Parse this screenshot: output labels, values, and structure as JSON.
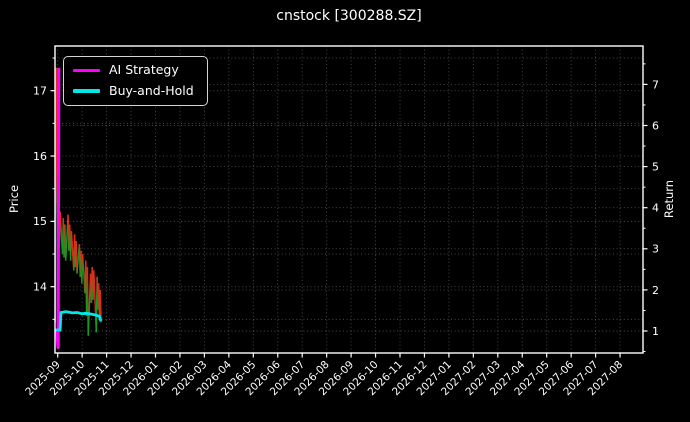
{
  "window": {
    "title": "cnstock [300288.SZ]"
  },
  "colors": {
    "background": "#000000",
    "text": "#ffffff",
    "frame": "#ffffff",
    "grid": "rgba(255,255,255,0.30)",
    "ai_strategy": "#ff00ff",
    "buy_and_hold": "#00e8e8",
    "price_up": "#0b9e20",
    "price_down": "#e12a1c"
  },
  "chart_data": {
    "type": "line",
    "title": "cnstock [300288.SZ]",
    "xlabel": "",
    "left_axis": {
      "label": "Price",
      "ticks": [
        14,
        15,
        16,
        17
      ],
      "minor_ticks": [
        13.5,
        14.5,
        15.5,
        16.5,
        17.5
      ],
      "range": [
        12.98,
        17.68
      ]
    },
    "right_axis": {
      "label": "Return",
      "ticks": [
        1,
        2,
        3,
        4,
        5,
        6,
        7
      ],
      "minor_ticks": [
        0.5,
        1.5,
        2.5,
        3.5,
        4.5,
        5.5,
        6.5,
        7.5
      ],
      "range": [
        0.46,
        7.93
      ]
    },
    "x_tick_labels": [
      "2025-09",
      "2025-10",
      "2025-11",
      "2025-12",
      "2026-01",
      "2026-02",
      "2026-03",
      "2026-04",
      "2026-05",
      "2026-06",
      "2026-07",
      "2026-08",
      "2026-09",
      "2026-10",
      "2026-11",
      "2026-12",
      "2027-01",
      "2027-02",
      "2027-03",
      "2027-04",
      "2027-05",
      "2027-06",
      "2027-07",
      "2027-08"
    ],
    "grid": {
      "on": true,
      "style": "dotted"
    },
    "legend": {
      "position": "upper-left",
      "entries": [
        {
          "label": "AI Strategy",
          "color": "#ff00ff"
        },
        {
          "label": "Buy-and-Hold",
          "color": "#00e8e8"
        }
      ]
    },
    "series": [
      {
        "name": "AI Strategy",
        "axis": "return",
        "color": "#ff00ff",
        "linewidth": 3.2,
        "points_day_value": [
          [
            -1.0,
            1.0
          ],
          [
            0.5,
            0.6
          ],
          [
            1.2,
            7.4
          ]
        ]
      },
      {
        "name": "Buy-and-Hold",
        "axis": "return",
        "color": "#00e8e8",
        "linewidth": 2.8,
        "points_day_value": [
          [
            -3,
            1.02
          ],
          [
            2,
            1.03
          ],
          [
            3,
            1.02
          ],
          [
            4,
            1.45
          ],
          [
            7,
            1.46
          ],
          [
            10,
            1.47
          ],
          [
            14,
            1.46
          ],
          [
            18,
            1.44
          ],
          [
            24,
            1.45
          ],
          [
            30,
            1.42
          ],
          [
            36,
            1.43
          ],
          [
            42,
            1.41
          ],
          [
            47,
            1.39
          ],
          [
            50,
            1.37
          ],
          [
            52,
            1.36
          ],
          [
            53,
            1.28
          ],
          [
            54,
            1.24
          ]
        ]
      },
      {
        "name": "Price",
        "axis": "price",
        "style": "updown-segments",
        "linewidth": 1.5,
        "points_day_value": [
          [
            -3,
            13.45
          ],
          [
            -2,
            17.35
          ],
          [
            -1,
            15.6
          ],
          [
            0,
            15.05
          ],
          [
            1,
            15.3
          ],
          [
            2,
            14.6
          ],
          [
            3,
            15.15
          ],
          [
            6,
            14.5
          ],
          [
            7,
            15.05
          ],
          [
            8,
            14.45
          ],
          [
            9,
            14.95
          ],
          [
            10,
            14.4
          ],
          [
            13,
            15.1
          ],
          [
            14,
            14.55
          ],
          [
            15,
            14.95
          ],
          [
            16,
            14.4
          ],
          [
            17,
            14.85
          ],
          [
            20,
            14.25
          ],
          [
            21,
            14.8
          ],
          [
            22,
            14.3
          ],
          [
            23,
            14.7
          ],
          [
            24,
            14.2
          ],
          [
            27,
            14.65
          ],
          [
            28,
            14.15
          ],
          [
            29,
            14.55
          ],
          [
            30,
            14.05
          ],
          [
            31,
            14.5
          ],
          [
            34,
            13.9
          ],
          [
            35,
            14.4
          ],
          [
            36,
            13.55
          ],
          [
            37,
            14.3
          ],
          [
            38,
            13.25
          ],
          [
            41,
            14.2
          ],
          [
            42,
            13.75
          ],
          [
            43,
            14.3
          ],
          [
            44,
            13.8
          ],
          [
            45,
            14.25
          ],
          [
            48,
            13.3
          ],
          [
            49,
            14.15
          ],
          [
            50,
            13.65
          ],
          [
            51,
            14.05
          ],
          [
            52,
            13.5
          ],
          [
            53,
            13.95
          ],
          [
            54,
            13.45
          ]
        ]
      }
    ],
    "x_start_date": "2025-09-01",
    "days_per_month": 30.44
  }
}
